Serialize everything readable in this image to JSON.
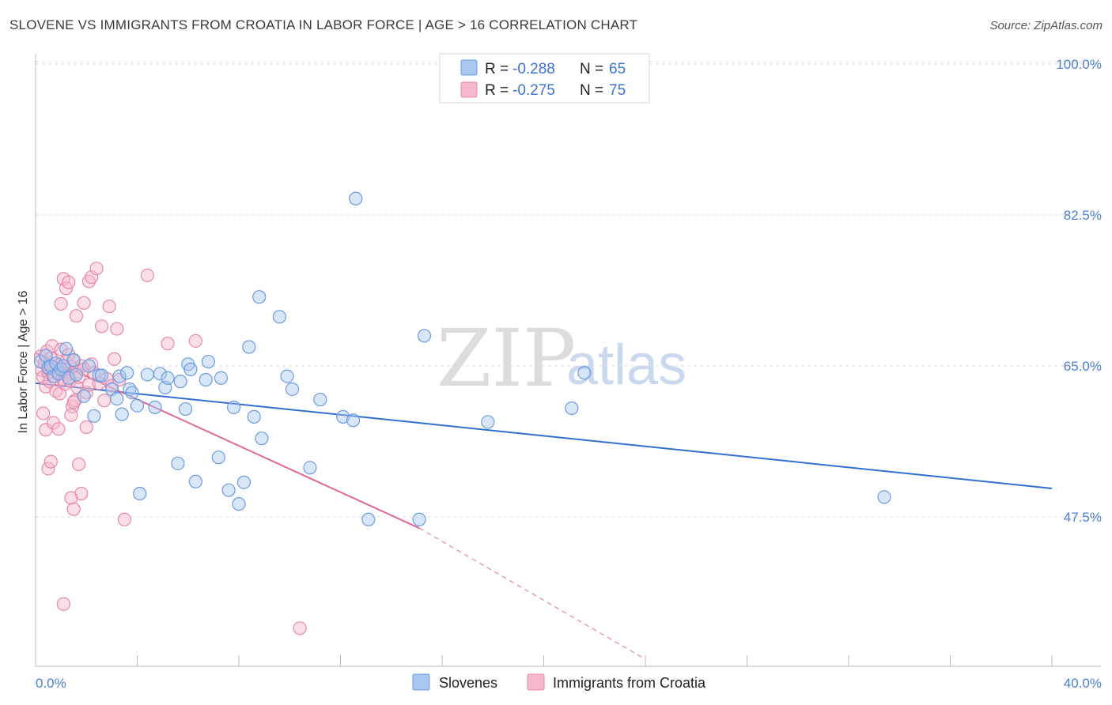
{
  "header": {
    "title": "SLOVENE VS IMMIGRANTS FROM CROATIA IN LABOR FORCE | AGE > 16 CORRELATION CHART",
    "source": "Source: ZipAtlas.com"
  },
  "watermark": {
    "zip": "ZIP",
    "atlas": "atlas"
  },
  "legend": {
    "r_label": "R =",
    "n_label": "N =",
    "entries": [
      {
        "r": "-0.288",
        "n": "65"
      },
      {
        "r": "-0.275",
        "n": "75"
      }
    ]
  },
  "colors": {
    "blue_fill": "#a9c8f0",
    "blue_stroke": "#6a9be0",
    "blue_line": "#2e6fd1",
    "pink_fill": "#f6b9cc",
    "pink_stroke": "#e887a6",
    "pink_line": "#e06690",
    "grid": "#dddddd",
    "tick_text": "#4a7fd0"
  },
  "chart_data": {
    "type": "scatter",
    "title": "SLOVENE VS IMMIGRANTS FROM CROATIA IN LABOR FORCE | AGE > 16 CORRELATION CHART",
    "xlabel": "",
    "ylabel": "In Labor Force | Age > 16",
    "xlim": [
      0,
      40
    ],
    "ylim": [
      31,
      102
    ],
    "y_ticks": [
      47.5,
      65.0,
      82.5,
      100.0
    ],
    "y_tick_labels": [
      "47.5%",
      "65.0%",
      "82.5%",
      "100.0%"
    ],
    "x_tick_labels": [
      "0.0%",
      "40.0%"
    ],
    "grid": true,
    "legend_position": "top-center",
    "series": [
      {
        "name": "Slovenes",
        "r": -0.288,
        "n": 65,
        "trend": {
          "x": [
            0,
            40
          ],
          "y": [
            63.0,
            50.8
          ]
        },
        "points": [
          [
            0.2,
            65.5
          ],
          [
            0.4,
            66.2
          ],
          [
            0.5,
            64.8
          ],
          [
            0.6,
            65.0
          ],
          [
            0.7,
            63.8
          ],
          [
            0.8,
            65.3
          ],
          [
            0.9,
            64.1
          ],
          [
            1.0,
            64.6
          ],
          [
            1.1,
            65.0
          ],
          [
            1.2,
            67.0
          ],
          [
            1.3,
            63.6
          ],
          [
            1.5,
            65.7
          ],
          [
            1.6,
            64.0
          ],
          [
            1.9,
            61.5
          ],
          [
            2.1,
            65.0
          ],
          [
            2.3,
            59.2
          ],
          [
            2.5,
            63.9
          ],
          [
            2.6,
            63.9
          ],
          [
            3.0,
            62.3
          ],
          [
            3.2,
            61.2
          ],
          [
            3.3,
            63.8
          ],
          [
            3.4,
            59.4
          ],
          [
            3.6,
            64.2
          ],
          [
            3.7,
            62.3
          ],
          [
            3.8,
            61.9
          ],
          [
            4.0,
            60.4
          ],
          [
            4.1,
            50.2
          ],
          [
            4.4,
            64.0
          ],
          [
            4.7,
            60.2
          ],
          [
            4.9,
            64.1
          ],
          [
            5.1,
            62.5
          ],
          [
            5.2,
            63.6
          ],
          [
            5.6,
            53.7
          ],
          [
            5.7,
            63.2
          ],
          [
            5.9,
            60.0
          ],
          [
            6.0,
            65.2
          ],
          [
            6.1,
            64.6
          ],
          [
            6.3,
            51.6
          ],
          [
            6.7,
            63.4
          ],
          [
            6.8,
            65.5
          ],
          [
            7.2,
            54.4
          ],
          [
            7.3,
            63.6
          ],
          [
            7.6,
            50.6
          ],
          [
            7.8,
            60.2
          ],
          [
            8.0,
            49.0
          ],
          [
            8.2,
            51.5
          ],
          [
            8.4,
            67.2
          ],
          [
            8.6,
            59.1
          ],
          [
            8.8,
            73.0
          ],
          [
            8.9,
            56.6
          ],
          [
            9.6,
            70.7
          ],
          [
            9.9,
            63.8
          ],
          [
            10.1,
            62.3
          ],
          [
            10.8,
            53.2
          ],
          [
            11.2,
            61.1
          ],
          [
            12.1,
            59.1
          ],
          [
            12.5,
            58.7
          ],
          [
            12.6,
            84.4
          ],
          [
            13.1,
            47.2
          ],
          [
            15.1,
            47.2
          ],
          [
            15.3,
            68.5
          ],
          [
            17.8,
            58.5
          ],
          [
            21.1,
            60.1
          ],
          [
            21.6,
            64.2
          ],
          [
            33.4,
            49.8
          ]
        ]
      },
      {
        "name": "Immigrants from Croatia",
        "r": -0.275,
        "n": 75,
        "trend": {
          "x": [
            0,
            15.1
          ],
          "y": [
            66.5,
            46.2
          ]
        },
        "trend_dashed": {
          "x": [
            15.1,
            24.0
          ],
          "y": [
            46.2,
            31.0
          ]
        },
        "points": [
          [
            0.2,
            66.1
          ],
          [
            0.25,
            64.5
          ],
          [
            0.3,
            63.7
          ],
          [
            0.35,
            65.3
          ],
          [
            0.4,
            62.6
          ],
          [
            0.45,
            66.7
          ],
          [
            0.5,
            64.2
          ],
          [
            0.55,
            63.2
          ],
          [
            0.6,
            65.9
          ],
          [
            0.65,
            67.3
          ],
          [
            0.7,
            64.9
          ],
          [
            0.75,
            63.8
          ],
          [
            0.8,
            62.1
          ],
          [
            0.85,
            64.4
          ],
          [
            0.9,
            65.1
          ],
          [
            0.95,
            61.8
          ],
          [
            1.0,
            66.9
          ],
          [
            1.05,
            63.5
          ],
          [
            1.1,
            64.7
          ],
          [
            1.15,
            62.9
          ],
          [
            1.2,
            65.5
          ],
          [
            1.25,
            64.0
          ],
          [
            1.3,
            66.3
          ],
          [
            1.35,
            63.3
          ],
          [
            1.4,
            64.9
          ],
          [
            1.45,
            60.3
          ],
          [
            1.5,
            65.6
          ],
          [
            1.55,
            61.0
          ],
          [
            1.6,
            64.3
          ],
          [
            1.65,
            62.5
          ],
          [
            1.7,
            63.7
          ],
          [
            1.8,
            65.0
          ],
          [
            1.9,
            64.6
          ],
          [
            2.0,
            61.9
          ],
          [
            2.1,
            62.8
          ],
          [
            2.2,
            65.2
          ],
          [
            0.3,
            59.5
          ],
          [
            0.4,
            57.6
          ],
          [
            0.5,
            53.1
          ],
          [
            0.6,
            53.9
          ],
          [
            0.7,
            58.4
          ],
          [
            0.9,
            57.7
          ],
          [
            1.0,
            72.2
          ],
          [
            1.1,
            75.1
          ],
          [
            1.2,
            74.0
          ],
          [
            1.3,
            74.7
          ],
          [
            1.4,
            59.3
          ],
          [
            1.5,
            60.8
          ],
          [
            1.6,
            70.8
          ],
          [
            1.7,
            53.6
          ],
          [
            1.8,
            50.2
          ],
          [
            1.9,
            72.3
          ],
          [
            2.0,
            57.9
          ],
          [
            2.1,
            74.8
          ],
          [
            2.2,
            75.3
          ],
          [
            2.3,
            64.2
          ],
          [
            2.4,
            76.3
          ],
          [
            2.5,
            63.0
          ],
          [
            2.6,
            69.6
          ],
          [
            2.7,
            61.0
          ],
          [
            2.8,
            63.5
          ],
          [
            2.9,
            71.9
          ],
          [
            3.0,
            62.7
          ],
          [
            3.1,
            65.8
          ],
          [
            3.2,
            69.3
          ],
          [
            3.3,
            63.4
          ],
          [
            3.5,
            47.2
          ],
          [
            4.4,
            75.5
          ],
          [
            5.2,
            67.6
          ],
          [
            6.3,
            67.9
          ],
          [
            1.4,
            49.7
          ],
          [
            1.5,
            48.4
          ],
          [
            1.1,
            37.4
          ],
          [
            0.5,
            64.7
          ],
          [
            10.4,
            34.6
          ]
        ]
      }
    ]
  },
  "bottom_legend": [
    "Slovenes",
    "Immigrants from Croatia"
  ]
}
